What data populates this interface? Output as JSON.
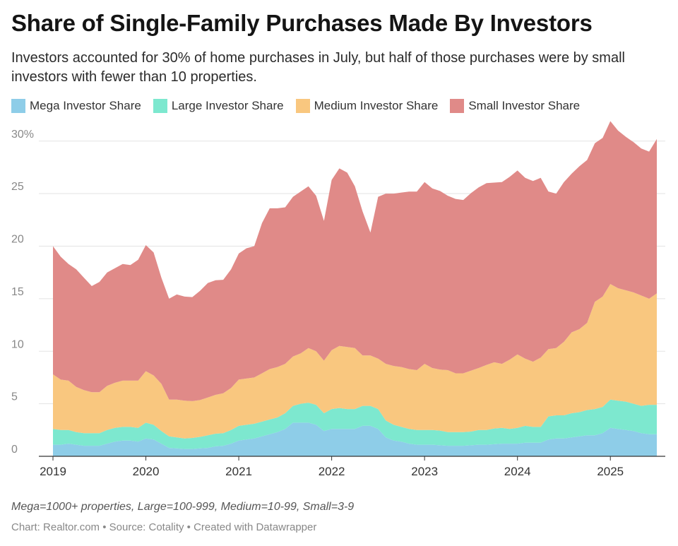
{
  "header": {
    "title": "Share of Single-Family Purchases Made By Investors",
    "subtitle": "Investors accounted for 30% of home purchases in July, but half of those purchases were by small investors with fewer than 10 properties."
  },
  "footer": {
    "note": "Mega=1000+ properties, Large=100-999, Medium=10-99, Small=3-9",
    "source": "Chart: Realtor.com • Source: Cotality • Created with Datawrapper"
  },
  "colors": {
    "mega": "#8ecde8",
    "large": "#7de8cf",
    "medium": "#f9c77f",
    "small": "#e08a88",
    "grid": "#e3e3e3",
    "axis": "#333333",
    "tick_label": "#888888"
  },
  "chart_data": {
    "type": "area",
    "stacked": true,
    "title": "Share of Single-Family Purchases Made By Investors",
    "xlabel": "",
    "ylabel": "",
    "ylim": [
      0,
      32
    ],
    "xlim": [
      2019,
      2025.5
    ],
    "yticks": [
      {
        "value": 0,
        "label": "0"
      },
      {
        "value": 5,
        "label": "5"
      },
      {
        "value": 10,
        "label": "10"
      },
      {
        "value": 15,
        "label": "15"
      },
      {
        "value": 20,
        "label": "20"
      },
      {
        "value": 25,
        "label": "25"
      },
      {
        "value": 30,
        "label": "30%"
      }
    ],
    "xticks": [
      {
        "value": 2019,
        "label": "2019"
      },
      {
        "value": 2020,
        "label": "2020"
      },
      {
        "value": 2021,
        "label": "2021"
      },
      {
        "value": 2022,
        "label": "2022"
      },
      {
        "value": 2023,
        "label": "2023"
      },
      {
        "value": 2024,
        "label": "2024"
      },
      {
        "value": 2025,
        "label": "2025"
      }
    ],
    "legend_position": "top-left",
    "grid": true,
    "x": [
      2019.0,
      2019.083,
      2019.167,
      2019.25,
      2019.333,
      2019.417,
      2019.5,
      2019.583,
      2019.667,
      2019.75,
      2019.833,
      2019.917,
      2020.0,
      2020.083,
      2020.167,
      2020.25,
      2020.333,
      2020.417,
      2020.5,
      2020.583,
      2020.667,
      2020.75,
      2020.833,
      2020.917,
      2021.0,
      2021.083,
      2021.167,
      2021.25,
      2021.333,
      2021.417,
      2021.5,
      2021.583,
      2021.667,
      2021.75,
      2021.833,
      2021.917,
      2022.0,
      2022.083,
      2022.167,
      2022.25,
      2022.333,
      2022.417,
      2022.5,
      2022.583,
      2022.667,
      2022.75,
      2022.833,
      2022.917,
      2023.0,
      2023.083,
      2023.167,
      2023.25,
      2023.333,
      2023.417,
      2023.5,
      2023.583,
      2023.667,
      2023.75,
      2023.833,
      2023.917,
      2024.0,
      2024.083,
      2024.167,
      2024.25,
      2024.333,
      2024.417,
      2024.5,
      2024.583,
      2024.667,
      2024.75,
      2024.833,
      2024.917,
      2025.0,
      2025.083,
      2025.167,
      2025.25,
      2025.333,
      2025.417,
      2025.5
    ],
    "series": [
      {
        "name": "Mega Investor Share",
        "color": "#8ecde8",
        "values": [
          1.1,
          1.1,
          1.2,
          1.1,
          1.0,
          1.0,
          1.0,
          1.2,
          1.4,
          1.5,
          1.5,
          1.4,
          1.7,
          1.6,
          1.2,
          0.8,
          0.75,
          0.7,
          0.7,
          0.75,
          0.8,
          0.95,
          1.0,
          1.2,
          1.5,
          1.6,
          1.7,
          1.9,
          2.1,
          2.3,
          2.6,
          3.2,
          3.2,
          3.2,
          3.0,
          2.4,
          2.6,
          2.6,
          2.6,
          2.6,
          2.9,
          2.9,
          2.6,
          1.8,
          1.5,
          1.4,
          1.2,
          1.1,
          1.1,
          1.1,
          1.05,
          1.0,
          1.0,
          1.0,
          1.05,
          1.1,
          1.1,
          1.15,
          1.2,
          1.2,
          1.2,
          1.3,
          1.3,
          1.3,
          1.6,
          1.7,
          1.7,
          1.8,
          1.9,
          2.0,
          2.0,
          2.2,
          2.7,
          2.6,
          2.5,
          2.4,
          2.2,
          2.1,
          2.1
        ]
      },
      {
        "name": "Large Investor Share",
        "color": "#7de8cf",
        "values": [
          1.5,
          1.4,
          1.3,
          1.2,
          1.2,
          1.2,
          1.2,
          1.3,
          1.3,
          1.3,
          1.3,
          1.3,
          1.5,
          1.4,
          1.2,
          1.1,
          1.05,
          1.0,
          1.05,
          1.1,
          1.2,
          1.2,
          1.2,
          1.3,
          1.4,
          1.4,
          1.4,
          1.4,
          1.4,
          1.4,
          1.5,
          1.6,
          1.8,
          1.9,
          1.9,
          1.7,
          1.9,
          2.0,
          1.9,
          1.9,
          1.9,
          1.9,
          1.9,
          1.6,
          1.5,
          1.4,
          1.4,
          1.4,
          1.4,
          1.4,
          1.4,
          1.3,
          1.3,
          1.3,
          1.3,
          1.4,
          1.4,
          1.5,
          1.5,
          1.4,
          1.5,
          1.6,
          1.5,
          1.5,
          2.2,
          2.2,
          2.2,
          2.3,
          2.3,
          2.4,
          2.5,
          2.5,
          2.7,
          2.7,
          2.7,
          2.6,
          2.6,
          2.8,
          2.8
        ]
      },
      {
        "name": "Medium Investor Share",
        "color": "#f9c77f",
        "values": [
          5.2,
          4.8,
          4.7,
          4.3,
          4.1,
          3.9,
          3.9,
          4.2,
          4.3,
          4.4,
          4.4,
          4.5,
          4.9,
          4.7,
          4.5,
          3.5,
          3.6,
          3.6,
          3.5,
          3.5,
          3.6,
          3.7,
          3.8,
          4.0,
          4.4,
          4.4,
          4.4,
          4.6,
          4.8,
          4.8,
          4.7,
          4.7,
          4.8,
          5.2,
          5.1,
          5.0,
          5.6,
          5.9,
          5.9,
          5.8,
          4.8,
          4.8,
          4.8,
          5.4,
          5.6,
          5.7,
          5.7,
          5.7,
          6.3,
          5.9,
          5.8,
          5.9,
          5.6,
          5.6,
          5.8,
          5.9,
          6.2,
          6.3,
          6.1,
          6.6,
          7.0,
          6.4,
          6.2,
          6.6,
          6.4,
          6.4,
          7.0,
          7.7,
          7.9,
          8.3,
          10.2,
          10.5,
          11.0,
          10.7,
          10.6,
          10.6,
          10.5,
          10.1,
          10.6
        ]
      },
      {
        "name": "Small Investor Share",
        "color": "#e08a88",
        "values": [
          12.2,
          11.7,
          11.1,
          11.2,
          10.7,
          10.1,
          10.5,
          10.8,
          10.9,
          11.1,
          11.0,
          11.5,
          12.0,
          11.7,
          10.1,
          9.6,
          10.0,
          9.9,
          9.9,
          10.4,
          10.9,
          10.9,
          10.8,
          11.3,
          12.0,
          12.4,
          12.5,
          14.3,
          15.3,
          15.1,
          14.9,
          15.2,
          15.4,
          15.4,
          14.8,
          13.3,
          16.2,
          16.9,
          16.6,
          15.4,
          13.7,
          11.7,
          15.4,
          16.2,
          16.4,
          16.6,
          16.9,
          17.0,
          17.3,
          17.1,
          17.0,
          16.6,
          16.6,
          16.5,
          16.9,
          17.2,
          17.3,
          17.1,
          17.3,
          17.4,
          17.5,
          17.2,
          17.2,
          17.1,
          15.0,
          14.7,
          15.2,
          15.1,
          15.5,
          15.5,
          15.1,
          15.1,
          15.5,
          15.0,
          14.6,
          14.3,
          14.0,
          14.0,
          14.7
        ]
      }
    ]
  }
}
